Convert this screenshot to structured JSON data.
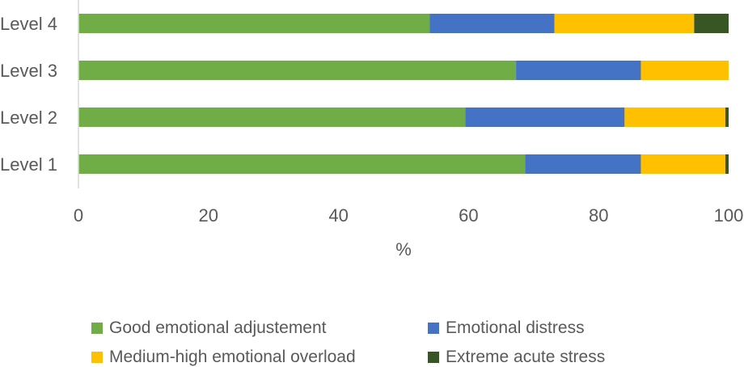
{
  "chart_data": {
    "type": "bar",
    "orientation": "horizontal",
    "stacked": true,
    "categories": [
      "Level 4",
      "Level 3",
      "Level 2",
      "Level 1"
    ],
    "series": [
      {
        "name": "Good emotional adjustement",
        "color": "#70AD47",
        "values": [
          54.0,
          67.3,
          59.5,
          68.7
        ]
      },
      {
        "name": "Emotional distress",
        "color": "#4472C4",
        "values": [
          19.2,
          19.2,
          24.5,
          17.8
        ]
      },
      {
        "name": "Medium-high emotional overload",
        "color": "#FFC000",
        "values": [
          21.5,
          13.5,
          15.5,
          13.0
        ]
      },
      {
        "name": "Extreme acute stress",
        "color": "#375623",
        "values": [
          5.3,
          0.0,
          0.5,
          0.5
        ]
      }
    ],
    "xlabel": "%",
    "ylabel": "",
    "xlim": [
      0,
      100
    ],
    "xticks": [
      "0",
      "20",
      "40",
      "60",
      "80",
      "100"
    ],
    "grid": false,
    "legend_position": "bottom"
  }
}
